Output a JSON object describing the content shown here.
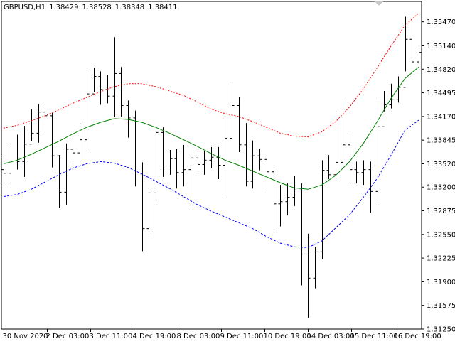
{
  "header": {
    "symbol": "GBPUSD,H1",
    "open": "1.38429",
    "high": "1.38528",
    "low": "1.38348",
    "close": "1.38411"
  },
  "colors": {
    "background": "#ffffff",
    "axis": "#000000",
    "bars": "#000000",
    "upper_band": "#ff0000",
    "middle_line": "#008000",
    "lower_band": "#0000ff"
  },
  "chart_data": {
    "type": "line",
    "subtype": "hlc-bar chart with moving-average envelope",
    "ylim": [
      1.3125,
      1.3575
    ],
    "y_ticks": [
      "1.35470",
      "1.35140",
      "1.34820",
      "1.34495",
      "1.34170",
      "1.33845",
      "1.33520",
      "1.33200",
      "1.32875",
      "1.32550",
      "1.32225",
      "1.31900",
      "1.31575",
      "1.31250"
    ],
    "x_ticks": [
      "30 Nov 2020",
      "2 Dec 03:00",
      "3 Dec 11:00",
      "4 Dec 19:00",
      "8 Dec 03:00",
      "9 Dec 11:00",
      "10 Dec 19:00",
      "14 Dec 03:00",
      "15 Dec 11:00",
      "16 Dec 19:00"
    ],
    "grid": false,
    "series": [
      {
        "style": "dotted",
        "values": [
          1.3401,
          1.3405,
          1.3411,
          1.3418,
          1.3426,
          1.3435,
          1.3443,
          1.3451,
          1.3458,
          1.3462,
          1.3462,
          1.3458,
          1.3452,
          1.3446,
          1.3437,
          1.3427,
          1.3421,
          1.3417,
          1.341,
          1.3402,
          1.3394,
          1.339,
          1.3389,
          1.3396,
          1.341,
          1.343,
          1.3455,
          1.3484,
          1.3514,
          1.3542,
          1.3559
        ]
      },
      {
        "style": "solid",
        "values": [
          1.3352,
          1.3357,
          1.3365,
          1.3374,
          1.3383,
          1.3393,
          1.3402,
          1.3409,
          1.3414,
          1.3413,
          1.3409,
          1.3402,
          1.3394,
          1.3385,
          1.3376,
          1.3366,
          1.3357,
          1.335,
          1.3342,
          1.3334,
          1.3326,
          1.3319,
          1.3317,
          1.3323,
          1.3336,
          1.3355,
          1.338,
          1.341,
          1.3442,
          1.3469,
          1.3485
        ]
      },
      {
        "style": "dashed",
        "values": [
          1.3307,
          1.331,
          1.3317,
          1.3327,
          1.3337,
          1.3346,
          1.3352,
          1.3355,
          1.3353,
          1.3347,
          1.3338,
          1.3328,
          1.3318,
          1.3307,
          1.3296,
          1.3287,
          1.3279,
          1.3271,
          1.3263,
          1.3252,
          1.3243,
          1.3238,
          1.3237,
          1.3246,
          1.3264,
          1.3282,
          1.3306,
          1.3332,
          1.3364,
          1.3398,
          1.3412
        ]
      }
    ],
    "ohlc_bars": [
      [
        1.3344,
        1.3339,
        1.3364,
        1.3324
      ],
      [
        1.3339,
        1.3353,
        1.3376,
        1.3326
      ],
      [
        1.3353,
        1.3355,
        1.3392,
        1.3344
      ],
      [
        1.3355,
        1.3379,
        1.3404,
        1.3334
      ],
      [
        1.3379,
        1.3394,
        1.3427,
        1.3383
      ],
      [
        1.3394,
        1.3423,
        1.3434,
        1.3381
      ],
      [
        1.3423,
        1.3418,
        1.3431,
        1.3394
      ],
      [
        1.3418,
        1.3363,
        1.3422,
        1.3347
      ],
      [
        1.3363,
        1.3313,
        1.3364,
        1.3291
      ],
      [
        1.3313,
        1.3372,
        1.338,
        1.3296
      ],
      [
        1.3372,
        1.3367,
        1.3385,
        1.3354
      ],
      [
        1.3367,
        1.3385,
        1.3408,
        1.3357
      ],
      [
        1.3385,
        1.3448,
        1.3478,
        1.3369
      ],
      [
        1.3448,
        1.3472,
        1.3484,
        1.3451
      ],
      [
        1.3472,
        1.3454,
        1.3479,
        1.3433
      ],
      [
        1.3454,
        1.3445,
        1.3474,
        1.3435
      ],
      [
        1.3445,
        1.3476,
        1.3526,
        1.3416
      ],
      [
        1.3476,
        1.3432,
        1.3485,
        1.3417
      ],
      [
        1.3432,
        1.3415,
        1.3439,
        1.3388
      ],
      [
        1.3415,
        1.3349,
        1.3425,
        1.3321
      ],
      [
        1.3349,
        1.3263,
        1.3354,
        1.3232
      ],
      [
        1.3263,
        1.3312,
        1.3327,
        1.3255
      ],
      [
        1.3312,
        1.3395,
        1.3405,
        1.3298
      ],
      [
        1.3395,
        1.3349,
        1.3402,
        1.3334
      ],
      [
        1.3349,
        1.3359,
        1.3371,
        1.3337
      ],
      [
        1.3359,
        1.334,
        1.3372,
        1.3318
      ],
      [
        1.334,
        1.3344,
        1.3378,
        1.3321
      ],
      [
        1.3344,
        1.336,
        1.338,
        1.3291
      ],
      [
        1.336,
        1.3351,
        1.3367,
        1.3341
      ],
      [
        1.3351,
        1.3357,
        1.337,
        1.3337
      ],
      [
        1.3357,
        1.3361,
        1.3375,
        1.3346
      ],
      [
        1.3361,
        1.335,
        1.3375,
        1.3331
      ],
      [
        1.335,
        1.3387,
        1.3418,
        1.3308
      ],
      [
        1.3387,
        1.3432,
        1.3467,
        1.3382
      ],
      [
        1.3432,
        1.3378,
        1.3444,
        1.3368
      ],
      [
        1.3378,
        1.3328,
        1.3408,
        1.3321
      ],
      [
        1.3328,
        1.3363,
        1.3384,
        1.3318
      ],
      [
        1.3363,
        1.3358,
        1.3372,
        1.3343
      ],
      [
        1.3358,
        1.3341,
        1.3364,
        1.3314
      ],
      [
        1.3341,
        1.3297,
        1.3348,
        1.3259
      ],
      [
        1.3297,
        1.33,
        1.3323,
        1.3266
      ],
      [
        1.33,
        1.3306,
        1.3325,
        1.3281
      ],
      [
        1.3306,
        1.3316,
        1.3335,
        1.3294
      ],
      [
        1.3316,
        1.3228,
        1.3325,
        1.3185
      ],
      [
        1.3228,
        1.3195,
        1.3256,
        1.314
      ],
      [
        1.3195,
        1.3231,
        1.3238,
        1.3181
      ],
      [
        1.3231,
        1.3343,
        1.3357,
        1.3221
      ],
      [
        1.3343,
        1.3337,
        1.3364,
        1.3331
      ],
      [
        1.3337,
        1.3354,
        1.3425,
        1.3331
      ],
      [
        1.3354,
        1.3378,
        1.3438,
        1.3355
      ],
      [
        1.3378,
        1.3344,
        1.339,
        1.3324
      ],
      [
        1.3344,
        1.334,
        1.3355,
        1.3325
      ],
      [
        1.334,
        1.3344,
        1.3357,
        1.3323
      ],
      [
        1.3344,
        1.3314,
        1.3355,
        1.3285
      ],
      [
        1.3314,
        1.3403,
        1.3441,
        1.3301
      ],
      [
        1.3403,
        1.3433,
        1.3452,
        1.3424
      ],
      [
        1.3433,
        1.344,
        1.3462,
        1.3428
      ],
      [
        1.344,
        1.3457,
        1.3472,
        1.3436
      ],
      [
        1.3457,
        1.3523,
        1.3554,
        1.3479
      ],
      [
        1.3523,
        1.3492,
        1.355,
        1.3473
      ],
      [
        1.3492,
        1.3505,
        1.3511,
        1.348
      ]
    ]
  }
}
